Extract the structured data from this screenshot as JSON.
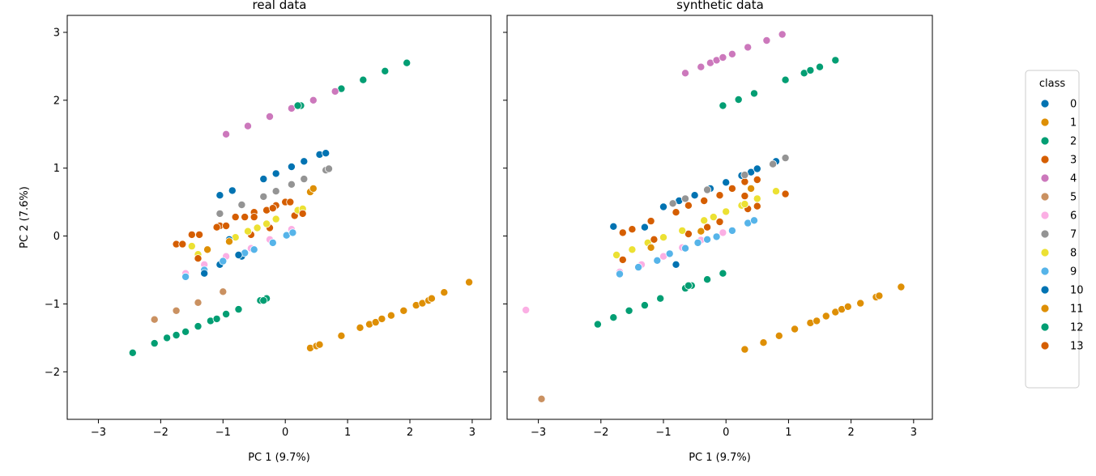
{
  "chart_data": [
    {
      "type": "scatter",
      "title": "real data",
      "xlabel": "PC 1 (9.7%)",
      "ylabel": "PC 2 (7.6%)",
      "xlim": [
        -3.5,
        3.3
      ],
      "ylim": [
        -2.7,
        3.25
      ],
      "xticks": [
        "−3",
        "−2",
        "−1",
        "0",
        "1",
        "2",
        "3"
      ],
      "yticks": [
        "−2",
        "−1",
        "0",
        "1",
        "2",
        "3"
      ],
      "grid": false,
      "series": [
        {
          "name": "0",
          "points": [
            [
              -1.05,
              0.6
            ],
            [
              -0.85,
              0.67
            ],
            [
              -0.35,
              0.84
            ],
            [
              -0.15,
              0.92
            ],
            [
              0.1,
              1.02
            ],
            [
              0.3,
              1.1
            ],
            [
              0.55,
              1.2
            ],
            [
              0.65,
              1.22
            ],
            [
              -1.05,
              -0.42
            ],
            [
              -0.7,
              -0.3
            ]
          ]
        },
        {
          "name": "1",
          "points": [
            [
              0.4,
              -1.65
            ],
            [
              0.5,
              -1.62
            ],
            [
              0.55,
              -1.6
            ],
            [
              0.9,
              -1.47
            ],
            [
              1.2,
              -1.35
            ],
            [
              1.35,
              -1.3
            ],
            [
              1.45,
              -1.27
            ],
            [
              1.55,
              -1.22
            ],
            [
              1.7,
              -1.17
            ],
            [
              1.9,
              -1.1
            ],
            [
              2.1,
              -1.02
            ],
            [
              2.2,
              -0.99
            ],
            [
              2.3,
              -0.95
            ],
            [
              2.35,
              -0.92
            ],
            [
              2.55,
              -0.83
            ],
            [
              2.95,
              -0.68
            ]
          ]
        },
        {
          "name": "2",
          "points": [
            [
              0.25,
              1.92
            ],
            [
              0.9,
              2.17
            ],
            [
              1.25,
              2.3
            ],
            [
              1.6,
              2.43
            ],
            [
              1.95,
              2.55
            ],
            [
              -2.45,
              -1.72
            ],
            [
              -2.1,
              -1.58
            ],
            [
              -1.9,
              -1.5
            ],
            [
              -1.75,
              -1.46
            ],
            [
              -1.6,
              -1.41
            ],
            [
              -1.4,
              -1.33
            ],
            [
              -1.2,
              -1.25
            ],
            [
              -1.1,
              -1.22
            ],
            [
              -0.95,
              -1.15
            ],
            [
              -0.75,
              -1.08
            ],
            [
              -0.4,
              -0.95
            ],
            [
              -0.3,
              -0.92
            ]
          ]
        },
        {
          "name": "3",
          "points": [
            [
              -1.75,
              -0.12
            ],
            [
              -1.65,
              -0.12
            ],
            [
              -1.5,
              0.02
            ],
            [
              -1.38,
              0.02
            ],
            [
              -1.05,
              0.15
            ],
            [
              -0.95,
              0.15
            ],
            [
              -0.8,
              0.28
            ],
            [
              -0.65,
              0.28
            ],
            [
              -0.5,
              0.35
            ],
            [
              -0.3,
              0.38
            ],
            [
              -0.15,
              0.45
            ],
            [
              0.0,
              0.5
            ],
            [
              0.08,
              0.5
            ],
            [
              -0.55,
              0.02
            ],
            [
              -0.25,
              0.12
            ],
            [
              0.15,
              0.3
            ]
          ]
        },
        {
          "name": "4",
          "points": [
            [
              -0.95,
              1.5
            ],
            [
              -0.6,
              1.62
            ],
            [
              -0.25,
              1.76
            ],
            [
              0.1,
              1.88
            ],
            [
              0.45,
              2.0
            ],
            [
              0.8,
              2.13
            ]
          ]
        },
        {
          "name": "5",
          "points": [
            [
              -2.1,
              -1.23
            ],
            [
              -1.75,
              -1.1
            ],
            [
              -1.4,
              -0.98
            ],
            [
              -1.0,
              -0.82
            ]
          ]
        },
        {
          "name": "6",
          "points": [
            [
              -1.6,
              -0.55
            ],
            [
              -1.3,
              -0.42
            ],
            [
              -0.95,
              -0.3
            ],
            [
              -0.55,
              -0.18
            ],
            [
              -0.25,
              -0.05
            ],
            [
              0.1,
              0.1
            ]
          ]
        },
        {
          "name": "7",
          "points": [
            [
              -1.05,
              0.33
            ],
            [
              -0.7,
              0.46
            ],
            [
              -0.35,
              0.58
            ],
            [
              -0.15,
              0.66
            ],
            [
              0.1,
              0.76
            ],
            [
              0.3,
              0.84
            ],
            [
              0.65,
              0.97
            ],
            [
              0.7,
              0.99
            ]
          ]
        },
        {
          "name": "8",
          "points": [
            [
              -1.5,
              -0.15
            ],
            [
              -1.4,
              -0.27
            ],
            [
              -0.8,
              -0.02
            ],
            [
              -0.6,
              0.07
            ],
            [
              -0.45,
              0.12
            ],
            [
              -0.3,
              0.18
            ],
            [
              -0.15,
              0.25
            ],
            [
              0.2,
              0.38
            ],
            [
              0.28,
              0.4
            ]
          ]
        },
        {
          "name": "9",
          "points": [
            [
              -1.6,
              -0.6
            ],
            [
              -1.3,
              -0.5
            ],
            [
              -1.0,
              -0.37
            ],
            [
              -0.65,
              -0.25
            ],
            [
              -0.5,
              -0.2
            ],
            [
              -0.2,
              -0.1
            ],
            [
              0.02,
              0.01
            ],
            [
              0.12,
              0.05
            ]
          ]
        },
        {
          "name": "10",
          "points": [
            [
              -0.9,
              -0.05
            ],
            [
              -1.3,
              -0.55
            ],
            [
              -0.75,
              -0.28
            ]
          ]
        },
        {
          "name": "11",
          "points": [
            [
              -1.25,
              -0.2
            ],
            [
              -0.9,
              -0.08
            ],
            [
              0.4,
              0.65
            ],
            [
              0.45,
              0.7
            ]
          ]
        },
        {
          "name": "12",
          "points": [
            [
              -0.35,
              -0.95
            ],
            [
              0.2,
              1.92
            ]
          ]
        },
        {
          "name": "13",
          "points": [
            [
              -1.4,
              -0.33
            ],
            [
              -1.1,
              0.13
            ],
            [
              -0.5,
              0.28
            ],
            [
              -0.2,
              0.41
            ],
            [
              0.28,
              0.33
            ]
          ]
        }
      ]
    },
    {
      "type": "scatter",
      "title": "synthetic data",
      "xlabel": "PC 1 (9.7%)",
      "ylabel": "",
      "xlim": [
        -3.5,
        3.3
      ],
      "ylim": [
        -2.7,
        3.25
      ],
      "xticks": [
        "−3",
        "−2",
        "−1",
        "0",
        "1",
        "2",
        "3"
      ],
      "yticks": [
        "−2",
        "−1",
        "0",
        "1",
        "2",
        "3"
      ],
      "grid": false,
      "series": [
        {
          "name": "0",
          "points": [
            [
              -1.8,
              0.14
            ],
            [
              -1.0,
              0.43
            ],
            [
              -0.75,
              0.52
            ],
            [
              -0.5,
              0.6
            ],
            [
              -0.25,
              0.7
            ],
            [
              0.0,
              0.79
            ],
            [
              0.25,
              0.89
            ],
            [
              0.4,
              0.94
            ],
            [
              0.5,
              0.99
            ],
            [
              0.8,
              1.1
            ]
          ]
        },
        {
          "name": "1",
          "points": [
            [
              0.3,
              -1.67
            ],
            [
              0.6,
              -1.57
            ],
            [
              0.85,
              -1.47
            ],
            [
              1.1,
              -1.37
            ],
            [
              1.35,
              -1.28
            ],
            [
              1.45,
              -1.25
            ],
            [
              1.6,
              -1.18
            ],
            [
              1.75,
              -1.12
            ],
            [
              1.85,
              -1.08
            ],
            [
              1.95,
              -1.04
            ],
            [
              2.15,
              -0.99
            ],
            [
              2.4,
              -0.9
            ],
            [
              2.45,
              -0.88
            ],
            [
              2.8,
              -0.75
            ]
          ]
        },
        {
          "name": "2",
          "points": [
            [
              -0.05,
              1.92
            ],
            [
              0.2,
              2.01
            ],
            [
              0.45,
              2.1
            ],
            [
              0.95,
              2.3
            ],
            [
              1.25,
              2.4
            ],
            [
              1.35,
              2.44
            ],
            [
              1.5,
              2.49
            ],
            [
              1.75,
              2.59
            ],
            [
              -2.05,
              -1.3
            ],
            [
              -1.8,
              -1.2
            ],
            [
              -1.55,
              -1.1
            ],
            [
              -1.3,
              -1.02
            ],
            [
              -1.05,
              -0.92
            ],
            [
              -0.65,
              -0.77
            ],
            [
              -0.55,
              -0.73
            ],
            [
              -0.3,
              -0.64
            ],
            [
              -0.05,
              -0.55
            ]
          ]
        },
        {
          "name": "3",
          "points": [
            [
              -1.65,
              0.05
            ],
            [
              -1.5,
              0.1
            ],
            [
              -1.2,
              0.22
            ],
            [
              -0.8,
              0.35
            ],
            [
              -0.6,
              0.45
            ],
            [
              -0.35,
              0.52
            ],
            [
              -0.1,
              0.6
            ],
            [
              0.1,
              0.7
            ],
            [
              0.3,
              0.8
            ],
            [
              0.5,
              0.83
            ],
            [
              0.95,
              0.62
            ],
            [
              -0.6,
              0.03
            ],
            [
              -0.3,
              0.13
            ],
            [
              -0.1,
              0.21
            ],
            [
              0.35,
              0.4
            ],
            [
              0.5,
              0.44
            ]
          ]
        },
        {
          "name": "4",
          "points": [
            [
              -0.65,
              2.4
            ],
            [
              -0.4,
              2.49
            ],
            [
              -0.25,
              2.55
            ],
            [
              -0.15,
              2.59
            ],
            [
              -0.05,
              2.63
            ],
            [
              0.1,
              2.68
            ],
            [
              0.35,
              2.78
            ],
            [
              0.65,
              2.88
            ],
            [
              0.9,
              2.97
            ]
          ]
        },
        {
          "name": "5",
          "points": [
            [
              -2.95,
              -2.4
            ]
          ]
        },
        {
          "name": "6",
          "points": [
            [
              -3.2,
              -1.09
            ],
            [
              -1.7,
              -0.53
            ],
            [
              -1.35,
              -0.42
            ],
            [
              -1.0,
              -0.3
            ],
            [
              -0.7,
              -0.17
            ],
            [
              -0.4,
              -0.06
            ],
            [
              -0.05,
              0.05
            ]
          ]
        },
        {
          "name": "7",
          "points": [
            [
              -0.85,
              0.48
            ],
            [
              -0.65,
              0.55
            ],
            [
              -0.3,
              0.68
            ],
            [
              0.3,
              0.9
            ],
            [
              0.75,
              1.06
            ],
            [
              0.95,
              1.15
            ]
          ]
        },
        {
          "name": "8",
          "points": [
            [
              -1.75,
              -0.28
            ],
            [
              -1.5,
              -0.2
            ],
            [
              -1.25,
              -0.1
            ],
            [
              -1.0,
              -0.02
            ],
            [
              -0.7,
              0.08
            ],
            [
              -0.35,
              0.23
            ],
            [
              -0.2,
              0.28
            ],
            [
              0.0,
              0.36
            ],
            [
              0.25,
              0.45
            ],
            [
              0.3,
              0.47
            ],
            [
              0.5,
              0.55
            ],
            [
              0.8,
              0.66
            ]
          ]
        },
        {
          "name": "9",
          "points": [
            [
              -1.7,
              -0.56
            ],
            [
              -1.4,
              -0.46
            ],
            [
              -1.1,
              -0.36
            ],
            [
              -0.9,
              -0.26
            ],
            [
              -0.65,
              -0.18
            ],
            [
              -0.45,
              -0.1
            ],
            [
              -0.3,
              -0.05
            ],
            [
              -0.15,
              -0.01
            ],
            [
              0.1,
              0.08
            ],
            [
              0.35,
              0.19
            ],
            [
              0.45,
              0.23
            ]
          ]
        },
        {
          "name": "10",
          "points": [
            [
              -0.8,
              -0.42
            ],
            [
              -1.3,
              0.13
            ]
          ]
        },
        {
          "name": "11",
          "points": [
            [
              -0.4,
              0.07
            ],
            [
              0.4,
              0.7
            ],
            [
              -1.2,
              -0.17
            ]
          ]
        },
        {
          "name": "12",
          "points": [
            [
              -0.6,
              -0.73
            ]
          ]
        },
        {
          "name": "13",
          "points": [
            [
              -1.65,
              -0.35
            ],
            [
              -1.15,
              -0.05
            ],
            [
              0.3,
              0.59
            ]
          ]
        }
      ]
    }
  ],
  "legend": {
    "title": "class",
    "placement": "right",
    "entries": [
      {
        "label": "0",
        "color": "#0173b2"
      },
      {
        "label": "1",
        "color": "#de8f05"
      },
      {
        "label": "2",
        "color": "#029e73"
      },
      {
        "label": "3",
        "color": "#d55e00"
      },
      {
        "label": "4",
        "color": "#cc78bc"
      },
      {
        "label": "5",
        "color": "#ca9161"
      },
      {
        "label": "6",
        "color": "#fbafe4"
      },
      {
        "label": "7",
        "color": "#949494"
      },
      {
        "label": "8",
        "color": "#ece133"
      },
      {
        "label": "9",
        "color": "#56b4e9"
      },
      {
        "label": "10",
        "color": "#0173b2"
      },
      {
        "label": "11",
        "color": "#de8f05"
      },
      {
        "label": "12",
        "color": "#029e73"
      },
      {
        "label": "13",
        "color": "#d55e00"
      }
    ]
  }
}
